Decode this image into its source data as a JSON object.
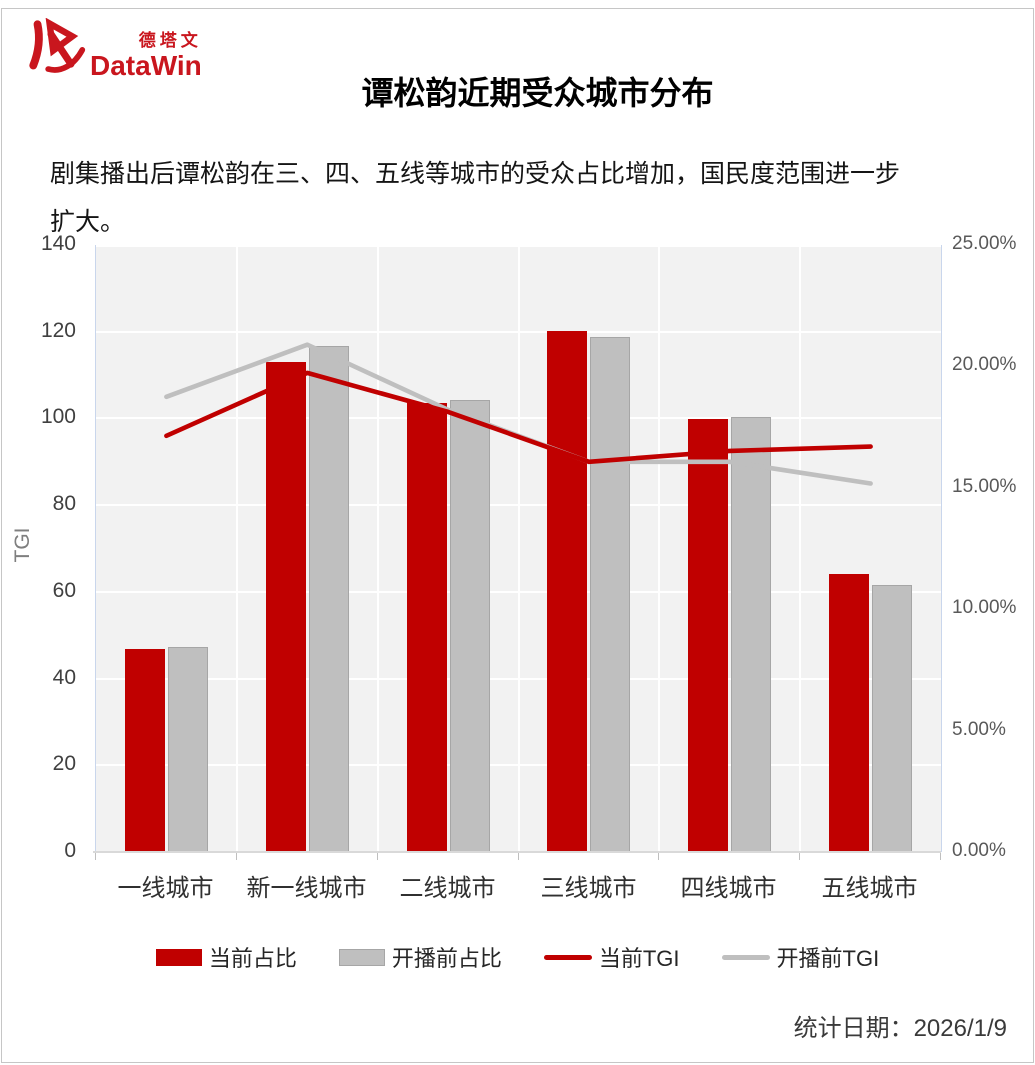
{
  "page": {
    "logo": {
      "cn": "德塔文",
      "en": "DataWin"
    },
    "title": "谭松韵近期受众城市分布",
    "subtitle": "剧集播出后谭松韵在三、四、五线等城市的受众占比增加，国民度范围进一步扩大。",
    "footer": "统计日期：2026/1/9"
  },
  "colors": {
    "brand_red": "#c9161e",
    "series_red": "#c00000",
    "series_gray": "#bfbfbf",
    "gray_bar_border": "#a6a6a6",
    "plot_background": "#f2f2f2",
    "gridline": "#ffffff",
    "axis_line": "#d9d9d9",
    "plot_edge": "#c9d6ec"
  },
  "chart_data": {
    "type": "bar",
    "subtype": "dual-axis bar + line combo",
    "categories": [
      "一线城市",
      "新一线城市",
      "二线城市",
      "三线城市",
      "四线城市",
      "五线城市"
    ],
    "series": [
      {
        "name": "当前占比",
        "type": "bar",
        "axis": "right",
        "color": "#c00000",
        "values": [
          8.35,
          20.2,
          18.5,
          21.45,
          17.85,
          11.45
        ]
      },
      {
        "name": "开播前占比",
        "type": "bar",
        "axis": "right",
        "color": "#bfbfbf",
        "border": "#a6a6a6",
        "values": [
          8.45,
          20.85,
          18.6,
          21.2,
          17.9,
          11.0
        ]
      },
      {
        "name": "当前TGI",
        "type": "line",
        "axis": "left",
        "color": "#c00000",
        "values": [
          96,
          110.5,
          101.5,
          90,
          92.5,
          93.5
        ]
      },
      {
        "name": "开播前TGI",
        "type": "line",
        "axis": "left",
        "color": "#bfbfbf",
        "values": [
          105,
          117,
          102,
          90,
          90,
          85
        ]
      }
    ],
    "left_axis": {
      "label": "TGI",
      "min": 0,
      "max": 140,
      "step": 20,
      "tick_labels": [
        "0",
        "20",
        "40",
        "60",
        "80",
        "100",
        "120",
        "140"
      ]
    },
    "right_axis": {
      "label": "",
      "min": 0,
      "max": 25,
      "step": 5,
      "tick_labels": [
        "0.00%",
        "5.00%",
        "10.00%",
        "15.00%",
        "20.00%",
        "25.00%"
      ]
    },
    "grid": true,
    "legend_position": "bottom"
  }
}
